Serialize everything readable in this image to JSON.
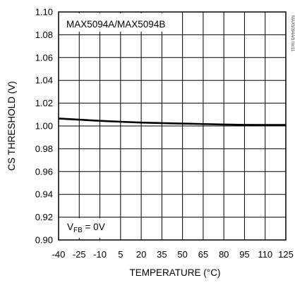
{
  "chart_data": {
    "type": "line",
    "title": "MAX5094A/MAX5094B",
    "annotation": {
      "main": "V",
      "sub": "FB",
      "tail": " = 0V"
    },
    "side_label": "MAX5094A/5 toc11",
    "xlabel": "TEMPERATURE (°C)",
    "ylabel": "CS THRESHOLD (V)",
    "xlim": [
      -40,
      125
    ],
    "ylim": [
      0.9,
      1.1
    ],
    "x_ticks": [
      -40,
      -25,
      -10,
      5,
      20,
      35,
      50,
      65,
      80,
      95,
      110,
      125
    ],
    "x_tick_labels": [
      "-40",
      "-25",
      "-10",
      "5",
      "20",
      "35",
      "50",
      "65",
      "80",
      "95",
      "110",
      "125"
    ],
    "y_ticks": [
      0.9,
      0.92,
      0.94,
      0.96,
      0.98,
      1.0,
      1.02,
      1.04,
      1.06,
      1.08,
      1.1
    ],
    "y_tick_labels": [
      "0.90",
      "0.92",
      "0.94",
      "0.96",
      "0.98",
      "1.00",
      "1.02",
      "1.04",
      "1.06",
      "1.08",
      "1.10"
    ],
    "grid": true,
    "series": [
      {
        "color": "#000000",
        "x": [
          -40,
          -25,
          -10,
          5,
          20,
          35,
          50,
          65,
          80,
          95,
          110,
          125
        ],
        "y": [
          1.0065,
          1.0055,
          1.0045,
          1.0037,
          1.003,
          1.0025,
          1.0021,
          1.0017,
          1.0013,
          1.001,
          1.0009,
          1.0009
        ]
      }
    ]
  }
}
